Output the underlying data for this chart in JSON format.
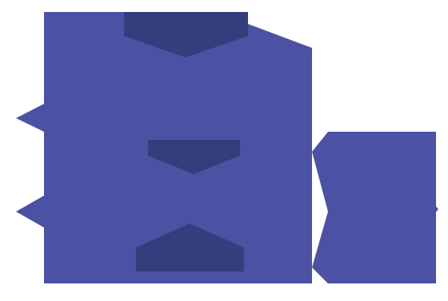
{
  "bg_color": "#ffffff",
  "main_color": "#4b52a3",
  "gate_color": "#363d7d",
  "fig_width": 5.6,
  "fig_height": 3.77,
  "dpi": 100
}
